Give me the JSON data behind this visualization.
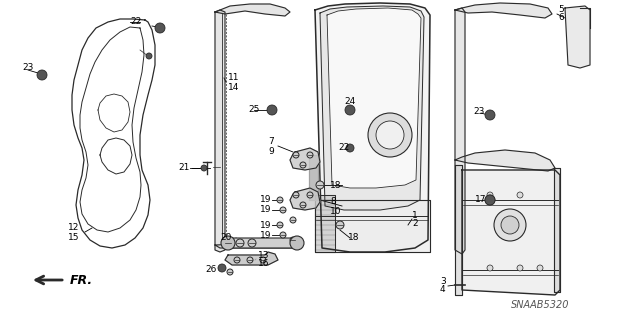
{
  "bg_color": "#ffffff",
  "lc": "#2a2a2a",
  "tc": "#000000",
  "watermark": "SNAAB5320",
  "fr_label": "FR.",
  "label_fs": 6.5,
  "figsize": [
    6.4,
    3.19
  ],
  "dpi": 100
}
